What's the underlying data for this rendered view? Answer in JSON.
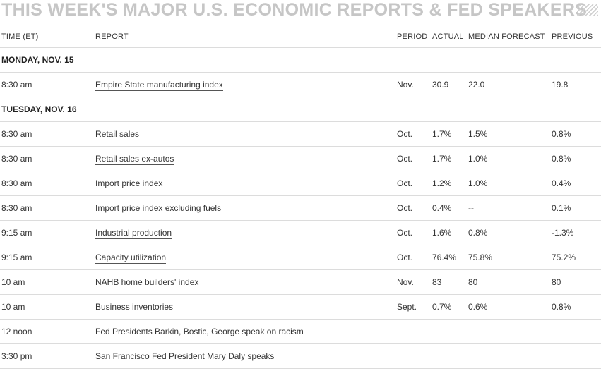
{
  "title": "THIS WEEK'S MAJOR U.S. ECONOMIC REPORTS & FED SPEAKERS",
  "columns": {
    "time": "TIME (ET)",
    "report": "REPORT",
    "period": "PERIOD",
    "actual": "ACTUAL",
    "median_forecast": "MEDIAN FORECAST",
    "previous": "PREVIOUS"
  },
  "rows": [
    {
      "type": "day",
      "label": "MONDAY, NOV. 15"
    },
    {
      "type": "report",
      "time": "8:30 am",
      "report": "Empire State manufacturing index",
      "link": true,
      "period": "Nov.",
      "actual": "30.9",
      "forecast": "22.0",
      "previous": "19.8"
    },
    {
      "type": "day",
      "label": "TUESDAY, NOV. 16"
    },
    {
      "type": "report",
      "time": "8:30 am",
      "report": "Retail sales",
      "link": true,
      "period": "Oct.",
      "actual": "1.7%",
      "forecast": "1.5%",
      "previous": "0.8%"
    },
    {
      "type": "report",
      "time": "8:30 am",
      "report": "Retail sales ex-autos",
      "link": true,
      "period": "Oct.",
      "actual": "1.7%",
      "forecast": "1.0%",
      "previous": "0.8%"
    },
    {
      "type": "report",
      "time": "8:30 am",
      "report": "Import price index",
      "link": false,
      "period": "Oct.",
      "actual": "1.2%",
      "forecast": "1.0%",
      "previous": "0.4%"
    },
    {
      "type": "report",
      "time": "8:30 am",
      "report": "Import price index excluding fuels",
      "link": false,
      "period": "Oct.",
      "actual": "0.4%",
      "forecast": "--",
      "previous": "0.1%"
    },
    {
      "type": "report",
      "time": "9:15 am",
      "report": "Industrial production",
      "link": true,
      "period": "Oct.",
      "actual": "1.6%",
      "forecast": "0.8%",
      "previous": "-1.3%"
    },
    {
      "type": "report",
      "time": "9:15 am",
      "report": "Capacity utilization",
      "link": true,
      "period": "Oct.",
      "actual": "76.4%",
      "forecast": "75.8%",
      "previous": "75.2%"
    },
    {
      "type": "report",
      "time": "10 am",
      "report": "NAHB home builders' index",
      "link": true,
      "period": "Nov.",
      "actual": "83",
      "forecast": "80",
      "previous": "80"
    },
    {
      "type": "report",
      "time": "10 am",
      "report": "Business inventories",
      "link": false,
      "period": "Sept.",
      "actual": "0.7%",
      "forecast": "0.6%",
      "previous": "0.8%"
    },
    {
      "type": "report",
      "time": "12 noon",
      "report": "Fed Presidents Barkin, Bostic, George speak on racism",
      "link": false,
      "period": "",
      "actual": "",
      "forecast": "",
      "previous": ""
    },
    {
      "type": "report",
      "time": "3:30 pm",
      "report": "San Francisco Fed President Mary Daly speaks",
      "link": false,
      "period": "",
      "actual": "",
      "forecast": "",
      "previous": ""
    }
  ]
}
